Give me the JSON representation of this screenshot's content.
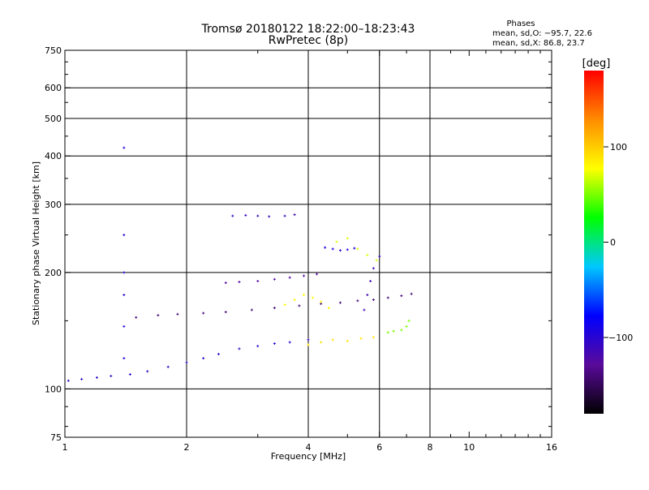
{
  "chart_data": {
    "type": "scatter",
    "title": "Tromsø 20180122 18:22:00–18:23:43",
    "subtitle": "RwPretec (8p)",
    "xlabel": "Frequency [MHz]",
    "ylabel": "Stationary phase Virtual Height [km]",
    "x_scale": "log",
    "y_scale": "log",
    "xlim": [
      1,
      16
    ],
    "ylim": [
      75,
      750
    ],
    "x_ticks": [
      1,
      2,
      4,
      6,
      8,
      10,
      16
    ],
    "y_ticks": [
      75,
      100,
      200,
      300,
      400,
      500,
      600,
      750
    ],
    "x_gridlines": [
      2,
      4,
      6,
      8
    ],
    "y_gridlines": [
      100,
      200,
      300,
      400,
      500,
      600
    ],
    "grid": true,
    "phases_box": {
      "title": "Phases",
      "line_o": "mean, sd,O: −95.7, 22.6",
      "line_x": "mean, sd,X:  86.8, 23.7"
    },
    "colorbar": {
      "label": "[deg]",
      "range": [
        -180,
        180
      ],
      "ticks": [
        "100",
        "0",
        "−100"
      ],
      "tick_values": [
        100,
        0,
        -100
      ],
      "colors": [
        "#000000",
        "#5a0a9a",
        "#0000ff",
        "#00c8ff",
        "#00ff00",
        "#ffff00",
        "#ff8c00",
        "#ff0000"
      ]
    },
    "series": [
      {
        "color_by": "phase_deg",
        "traces": [
          {
            "x": [
              1.02,
              1.1,
              1.2,
              1.3,
              1.45,
              1.6,
              1.8,
              2.0,
              2.2,
              2.4,
              2.7,
              3.0,
              3.3,
              3.6,
              4.0
            ],
            "y": [
              105,
              106,
              107,
              108,
              109,
              111,
              114,
              117,
              120,
              123,
              127,
              129,
              131,
              132,
              134
            ],
            "phase": -105
          },
          {
            "x": [
              1.5,
              1.7,
              1.9,
              2.2,
              2.5,
              2.9,
              3.3,
              3.8,
              4.3,
              4.8,
              5.3,
              5.8,
              6.3,
              6.8,
              7.2
            ],
            "y": [
              153,
              155,
              156,
              157,
              158,
              160,
              162,
              164,
              166,
              167,
              169,
              170,
              172,
              174,
              176
            ],
            "phase": -140
          },
          {
            "x": [
              2.5,
              2.7,
              3.0,
              3.3,
              3.6,
              3.9,
              4.2
            ],
            "y": [
              188,
              189,
              190,
              192,
              194,
              196,
              198
            ],
            "phase": -125
          },
          {
            "x": [
              2.6,
              2.8,
              3.0,
              3.2,
              3.5,
              3.7
            ],
            "y": [
              280,
              281,
              280,
              279,
              280,
              282
            ],
            "phase": -110
          },
          {
            "x": [
              4.4,
              4.6,
              4.8,
              5.0,
              5.2
            ],
            "y": [
              232,
              230,
              228,
              229,
              231
            ],
            "phase": -95
          },
          {
            "x": [
              3.5,
              3.7,
              3.9,
              4.1,
              4.3,
              4.5
            ],
            "y": [
              165,
              170,
              175,
              172,
              168,
              162
            ],
            "phase": 80
          },
          {
            "x": [
              4.7,
              5.0,
              5.3,
              5.6,
              5.9
            ],
            "y": [
              240,
              245,
              230,
              222,
              215
            ],
            "phase": 70
          },
          {
            "x": [
              4.0,
              4.3,
              4.6,
              5.0,
              5.4,
              5.8
            ],
            "y": [
              130,
              132,
              134,
              133,
              135,
              136
            ],
            "phase": 90
          },
          {
            "x": [
              6.3,
              6.5,
              6.8,
              7.0,
              7.1
            ],
            "y": [
              140,
              141,
              142,
              145,
              150
            ],
            "phase": 50
          },
          {
            "x": [
              1.4,
              1.4,
              1.4,
              1.4,
              1.4,
              1.4
            ],
            "y": [
              120,
              145,
              175,
              200,
              250,
              420
            ],
            "phase": -100
          },
          {
            "x": [
              5.5,
              5.6,
              5.7,
              5.8,
              6.0
            ],
            "y": [
              160,
              175,
              190,
              205,
              220
            ],
            "phase": -115
          }
        ]
      }
    ]
  }
}
